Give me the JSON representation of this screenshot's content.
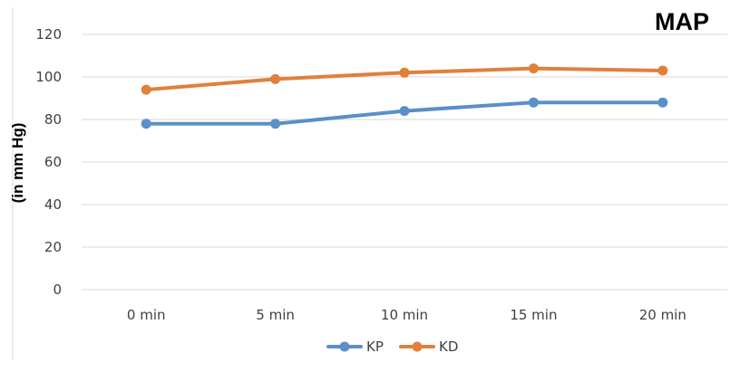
{
  "chart_data": {
    "type": "line",
    "title": "MAP",
    "xlabel": "",
    "ylabel": "(in mm Hg)",
    "categories": [
      "0 min",
      "5 min",
      "10 min",
      "15 min",
      "20 min"
    ],
    "series": [
      {
        "name": "KP",
        "color": "#5b8fc7",
        "values": [
          78,
          78,
          84,
          88,
          88
        ]
      },
      {
        "name": "KD",
        "color": "#e0803a",
        "values": [
          94,
          99,
          102,
          104,
          103
        ]
      }
    ],
    "ylim": [
      0,
      120
    ],
    "yticks": [
      0,
      20,
      40,
      60,
      80,
      100,
      120
    ],
    "grid": true,
    "legend_position": "bottom"
  }
}
